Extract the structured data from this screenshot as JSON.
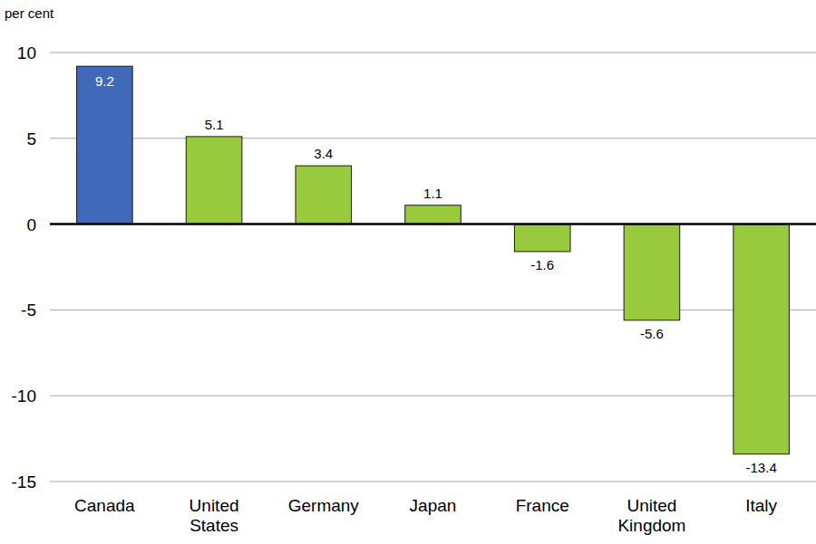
{
  "chart_data": {
    "type": "bar",
    "y_label": "per cent",
    "categories": [
      "Canada",
      "United States",
      "Germany",
      "Japan",
      "France",
      "United Kingdom",
      "Italy"
    ],
    "values": [
      9.2,
      5.1,
      3.4,
      1.1,
      -1.6,
      -5.6,
      -13.4
    ],
    "colors": [
      "#4169b9",
      "#99c93c",
      "#99c93c",
      "#99c93c",
      "#99c93c",
      "#99c93c",
      "#99c93c"
    ],
    "ylim": [
      -15,
      10
    ],
    "yticks": [
      -15,
      -10,
      -5,
      0,
      5,
      10
    ],
    "grid": true,
    "data_labels": true
  }
}
